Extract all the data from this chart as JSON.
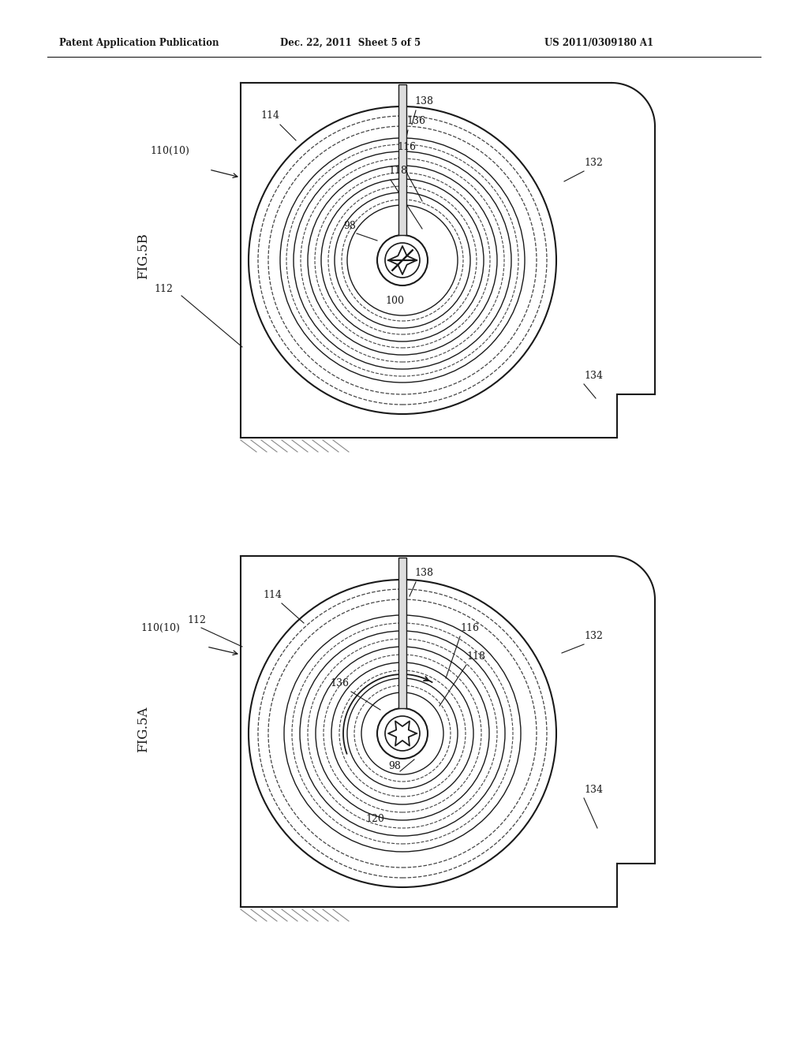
{
  "header_left": "Patent Application Publication",
  "header_center": "Dec. 22, 2011  Sheet 5 of 5",
  "header_right": "US 2011/0309180 A1",
  "fig_top_label": "FIG.5B",
  "fig_bottom_label": "FIG.5A",
  "bg_color": "#ffffff",
  "line_color": "#1a1a1a",
  "dashed_color": "#444444"
}
